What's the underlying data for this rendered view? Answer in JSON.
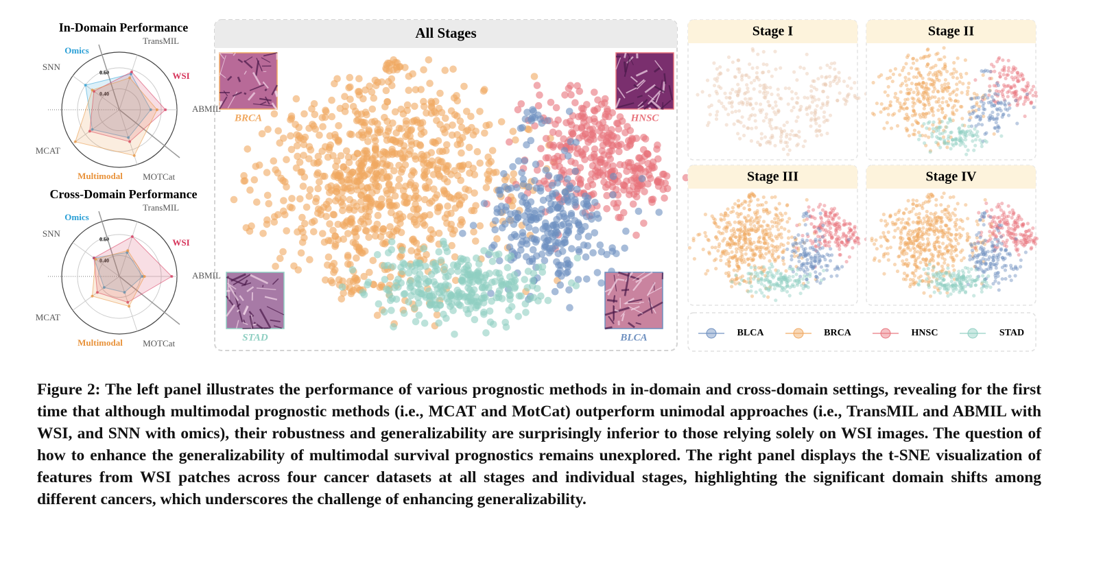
{
  "chart_data": [
    {
      "type": "radar",
      "title": "In-Domain Performance",
      "axes": [
        "SNN",
        "TransMIL",
        "ABMIL",
        "MOTCat",
        "MCAT"
      ],
      "rlim": [
        0.2,
        0.75
      ],
      "rticks": [
        {
          "value": 0.4,
          "label": "0.40"
        },
        {
          "value": 0.6,
          "label": "0.60"
        }
      ],
      "series": [
        {
          "name": "Omics",
          "color": "#2a9fd6",
          "values": [
            0.6,
            0.56,
            0.5,
            0.48,
            0.52
          ]
        },
        {
          "name": "WSI",
          "color": "#d6335a",
          "values": [
            0.5,
            0.58,
            0.64,
            0.52,
            0.55
          ]
        },
        {
          "name": "Multimodal",
          "color": "#e8923a",
          "values": [
            0.52,
            0.52,
            0.56,
            0.66,
            0.72
          ]
        }
      ]
    },
    {
      "type": "radar",
      "title": "Cross-Domain Performance",
      "axes": [
        "SNN",
        "TransMIL",
        "ABMIL",
        "MOTCat",
        "MCAT"
      ],
      "rlim": [
        0.2,
        0.75
      ],
      "rticks": [
        {
          "value": 0.4,
          "label": "0.40"
        },
        {
          "value": 0.6,
          "label": "0.60"
        }
      ],
      "series": [
        {
          "name": "Omics",
          "color": "#2a9fd6",
          "values": [
            0.5,
            0.44,
            0.42,
            0.36,
            0.38
          ]
        },
        {
          "name": "WSI",
          "color": "#d6335a",
          "values": [
            0.5,
            0.6,
            0.7,
            0.46,
            0.46
          ]
        },
        {
          "name": "Multimodal",
          "color": "#e8923a",
          "values": [
            0.48,
            0.46,
            0.44,
            0.5,
            0.52
          ]
        }
      ]
    }
  ],
  "tsne": {
    "title": "All Stages",
    "stages": [
      "Stage I",
      "Stage II",
      "Stage III",
      "Stage IV"
    ],
    "classes": [
      {
        "name": "BLCA",
        "color": "#6d8fbf"
      },
      {
        "name": "BRCA",
        "color": "#f0a860"
      },
      {
        "name": "HNSC",
        "color": "#e8737c"
      },
      {
        "name": "STAD",
        "color": "#8fcfc2"
      }
    ]
  },
  "caption": "Figure 2: The left panel illustrates the performance of various prognostic methods in in-domain and cross-domain settings, revealing for the first time that although multimodal prognostic methods (i.e., MCAT and MotCat) outperform unimodal approaches (i.e., TransMIL and ABMIL with WSI, and SNN with omics), their robustness and generalizability are surprisingly inferior to those relying solely on WSI images. The question of how to enhance the generalizability of multimodal survival prognostics remains unexplored. The right panel displays the t-SNE visualization of features from WSI patches across four cancer datasets at all stages and individual stages, highlighting the significant domain shifts among different cancers, which underscores the challenge of enhancing generalizability."
}
